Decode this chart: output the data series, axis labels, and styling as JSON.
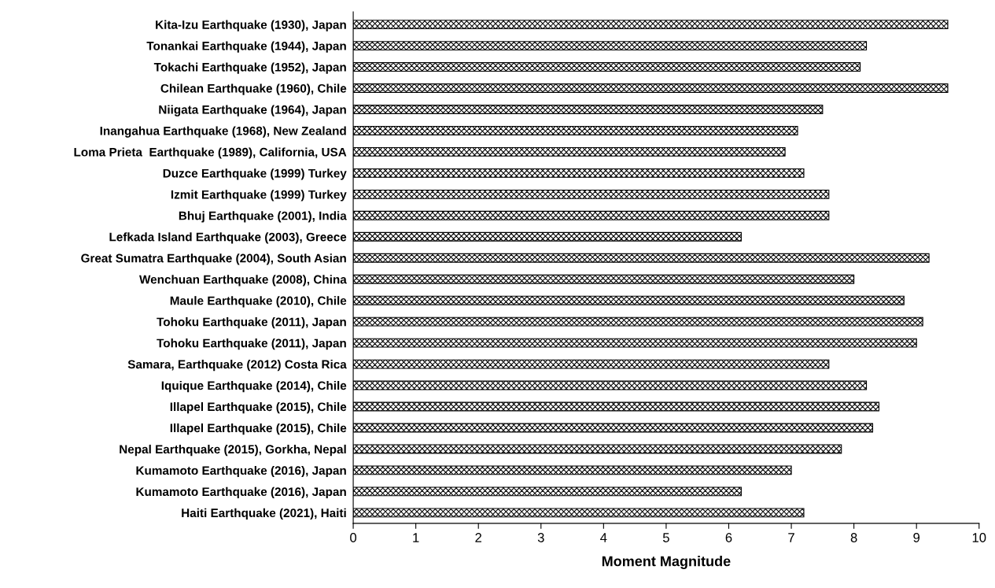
{
  "chart_data": {
    "type": "bar",
    "orientation": "horizontal",
    "xlabel": "Moment Magnitude",
    "categories": [
      "Kita-Izu Earthquake (1930), Japan",
      "Tonankai Earthquake (1944), Japan",
      "Tokachi Earthquake (1952), Japan",
      "Chilean Earthquake (1960), Chile",
      "Niigata Earthquake (1964), Japan",
      "Inangahua Earthquake (1968), New Zealand",
      "Loma Prieta  Earthquake (1989), California, USA",
      "Duzce Earthquake (1999) Turkey",
      "Izmit Earthquake (1999) Turkey",
      "Bhuj Earthquake (2001), India",
      "Lefkada Island Earthquake (2003), Greece",
      "Great Sumatra Earthquake (2004), South Asian",
      "Wenchuan Earthquake (2008), China",
      "Maule Earthquake (2010), Chile",
      "Tohoku Earthquake (2011), Japan",
      "Tohoku Earthquake (2011), Japan",
      "Samara, Earthquake (2012) Costa Rica",
      "Iquique Earthquake (2014), Chile",
      "Illapel Earthquake (2015), Chile",
      "Illapel Earthquake (2015), Chile",
      "Nepal Earthquake (2015), Gorkha, Nepal",
      "Kumamoto Earthquake (2016), Japan",
      "Kumamoto Earthquake (2016), Japan",
      "Haiti Earthquake (2021), Haiti"
    ],
    "values": [
      9.5,
      8.2,
      8.1,
      9.5,
      7.5,
      7.1,
      6.9,
      7.2,
      7.6,
      7.6,
      6.2,
      9.2,
      8.0,
      8.8,
      9.1,
      9.0,
      7.6,
      8.2,
      8.4,
      8.3,
      7.8,
      7.0,
      6.2,
      7.2
    ],
    "color": "#000000",
    "xlim": [
      0,
      10
    ],
    "xticks": [
      0,
      1,
      2,
      3,
      4,
      5,
      6,
      7,
      8,
      9,
      10
    ],
    "grid": false
  }
}
